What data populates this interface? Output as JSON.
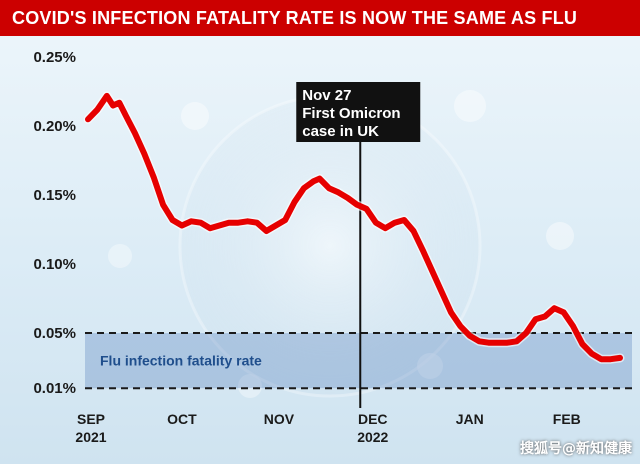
{
  "header": {
    "title": "COVID'S INFECTION FATALITY RATE IS NOW THE SAME AS FLU"
  },
  "chart_data": {
    "type": "line",
    "title": "COVID'S INFECTION FATALITY RATE IS NOW THE SAME AS FLU",
    "xlabel": "",
    "ylabel": "",
    "ylim": [
      0.0,
      0.25
    ],
    "y_ticks": [
      "0.01%",
      "0.05%",
      "0.10%",
      "0.15%",
      "0.20%",
      "0.25%"
    ],
    "y_tick_values": [
      0.01,
      0.05,
      0.1,
      0.15,
      0.2,
      0.25
    ],
    "x_tick_labels": [
      {
        "line1": "SEP",
        "line2": "2021",
        "date": "2021-09-01"
      },
      {
        "line1": "OCT",
        "line2": "",
        "date": "2021-10-01"
      },
      {
        "line1": "NOV",
        "line2": "",
        "date": "2021-11-01"
      },
      {
        "line1": "DEC",
        "line2": "2022",
        "date": "2021-12-01"
      },
      {
        "line1": "JAN",
        "line2": "",
        "date": "2022-01-01"
      },
      {
        "line1": "FEB",
        "line2": "",
        "date": "2022-02-01"
      }
    ],
    "grid": false,
    "series": [
      {
        "color": "#e60000",
        "points": [
          [
            "2021-09-01",
            0.205
          ],
          [
            "2021-09-04",
            0.212
          ],
          [
            "2021-09-07",
            0.222
          ],
          [
            "2021-09-09",
            0.215
          ],
          [
            "2021-09-11",
            0.217
          ],
          [
            "2021-09-13",
            0.208
          ],
          [
            "2021-09-16",
            0.195
          ],
          [
            "2021-09-19",
            0.18
          ],
          [
            "2021-09-22",
            0.163
          ],
          [
            "2021-09-25",
            0.143
          ],
          [
            "2021-09-28",
            0.132
          ],
          [
            "2021-10-01",
            0.128
          ],
          [
            "2021-10-04",
            0.131
          ],
          [
            "2021-10-07",
            0.13
          ],
          [
            "2021-10-10",
            0.126
          ],
          [
            "2021-10-13",
            0.128
          ],
          [
            "2021-10-16",
            0.13
          ],
          [
            "2021-10-19",
            0.13
          ],
          [
            "2021-10-22",
            0.131
          ],
          [
            "2021-10-25",
            0.13
          ],
          [
            "2021-10-28",
            0.124
          ],
          [
            "2021-10-31",
            0.128
          ],
          [
            "2021-11-03",
            0.132
          ],
          [
            "2021-11-06",
            0.145
          ],
          [
            "2021-11-09",
            0.155
          ],
          [
            "2021-11-12",
            0.16
          ],
          [
            "2021-11-14",
            0.162
          ],
          [
            "2021-11-17",
            0.155
          ],
          [
            "2021-11-20",
            0.152
          ],
          [
            "2021-11-23",
            0.148
          ],
          [
            "2021-11-26",
            0.143
          ],
          [
            "2021-11-29",
            0.14
          ],
          [
            "2021-12-02",
            0.13
          ],
          [
            "2021-12-05",
            0.126
          ],
          [
            "2021-12-08",
            0.13
          ],
          [
            "2021-12-11",
            0.132
          ],
          [
            "2021-12-14",
            0.124
          ],
          [
            "2021-12-17",
            0.11
          ],
          [
            "2021-12-20",
            0.095
          ],
          [
            "2021-12-23",
            0.08
          ],
          [
            "2021-12-26",
            0.065
          ],
          [
            "2021-12-29",
            0.055
          ],
          [
            "2022-01-01",
            0.048
          ],
          [
            "2022-01-04",
            0.044
          ],
          [
            "2022-01-07",
            0.043
          ],
          [
            "2022-01-10",
            0.043
          ],
          [
            "2022-01-13",
            0.043
          ],
          [
            "2022-01-16",
            0.044
          ],
          [
            "2022-01-19",
            0.05
          ],
          [
            "2022-01-22",
            0.06
          ],
          [
            "2022-01-25",
            0.062
          ],
          [
            "2022-01-28",
            0.068
          ],
          [
            "2022-01-31",
            0.065
          ],
          [
            "2022-02-03",
            0.055
          ],
          [
            "2022-02-06",
            0.042
          ],
          [
            "2022-02-09",
            0.035
          ],
          [
            "2022-02-12",
            0.031
          ],
          [
            "2022-02-15",
            0.031
          ],
          [
            "2022-02-18",
            0.032
          ]
        ]
      }
    ],
    "bands": [
      {
        "label": "Flu infection fatality rate",
        "from": 0.01,
        "to": 0.05,
        "color": "#3f6fb5"
      }
    ],
    "annotations": [
      {
        "date": "2021-11-27",
        "lines": [
          "Nov 27",
          "First Omicron",
          "case in UK"
        ]
      }
    ]
  },
  "watermark": {
    "text": "搜狐号@新知健康"
  }
}
